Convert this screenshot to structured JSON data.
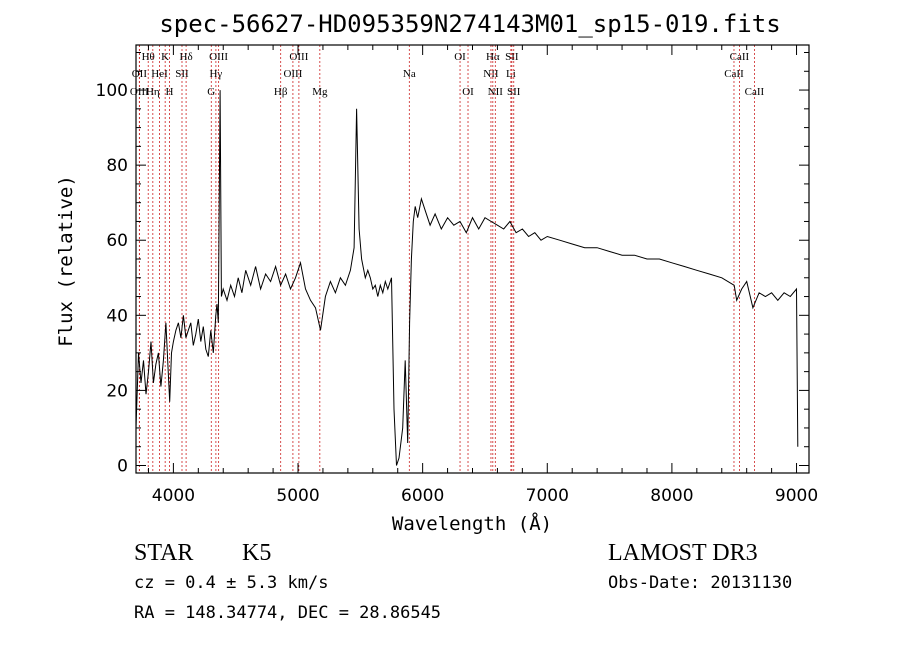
{
  "chart_data": {
    "type": "line",
    "title": "spec-56627-HD095359N274143M01_sp15-019.fits",
    "xlabel": "Wavelength (Å)",
    "ylabel": "Flux (relative)",
    "xlim": [
      3700,
      9100
    ],
    "ylim": [
      -2,
      112
    ],
    "x_ticks": [
      4000,
      5000,
      6000,
      7000,
      8000,
      9000
    ],
    "x_tick_labels": [
      "4000",
      "5000",
      "6000",
      "7000",
      "8000",
      "9000"
    ],
    "y_ticks": [
      0,
      20,
      40,
      60,
      80,
      100
    ],
    "y_tick_labels": [
      "0",
      "20",
      "40",
      "60",
      "80",
      "100"
    ],
    "grid": false,
    "series": [
      {
        "color": "#000000",
        "points": [
          [
            3700,
            10
          ],
          [
            3720,
            30
          ],
          [
            3740,
            22
          ],
          [
            3760,
            28
          ],
          [
            3780,
            19
          ],
          [
            3800,
            25
          ],
          [
            3820,
            33
          ],
          [
            3840,
            22
          ],
          [
            3860,
            27
          ],
          [
            3880,
            30
          ],
          [
            3900,
            21
          ],
          [
            3920,
            28
          ],
          [
            3940,
            38
          ],
          [
            3960,
            24
          ],
          [
            3970,
            17
          ],
          [
            3985,
            30
          ],
          [
            4000,
            33
          ],
          [
            4020,
            36
          ],
          [
            4040,
            38
          ],
          [
            4060,
            34
          ],
          [
            4080,
            40
          ],
          [
            4100,
            34
          ],
          [
            4120,
            36
          ],
          [
            4140,
            38
          ],
          [
            4160,
            32
          ],
          [
            4180,
            35
          ],
          [
            4200,
            39
          ],
          [
            4220,
            33
          ],
          [
            4240,
            37
          ],
          [
            4260,
            31
          ],
          [
            4280,
            29
          ],
          [
            4300,
            36
          ],
          [
            4320,
            30
          ],
          [
            4340,
            40
          ],
          [
            4350,
            43
          ],
          [
            4360,
            38
          ],
          [
            4375,
            100
          ],
          [
            4385,
            45
          ],
          [
            4400,
            47
          ],
          [
            4430,
            44
          ],
          [
            4460,
            48
          ],
          [
            4490,
            45
          ],
          [
            4520,
            50
          ],
          [
            4550,
            46
          ],
          [
            4580,
            52
          ],
          [
            4620,
            48
          ],
          [
            4660,
            53
          ],
          [
            4700,
            47
          ],
          [
            4740,
            51
          ],
          [
            4780,
            49
          ],
          [
            4820,
            53
          ],
          [
            4860,
            48
          ],
          [
            4900,
            51
          ],
          [
            4940,
            47
          ],
          [
            4980,
            50
          ],
          [
            5020,
            54
          ],
          [
            5060,
            47
          ],
          [
            5100,
            44
          ],
          [
            5140,
            42
          ],
          [
            5180,
            36
          ],
          [
            5220,
            45
          ],
          [
            5260,
            49
          ],
          [
            5300,
            46
          ],
          [
            5340,
            50
          ],
          [
            5380,
            48
          ],
          [
            5420,
            52
          ],
          [
            5450,
            58
          ],
          [
            5470,
            95
          ],
          [
            5490,
            63
          ],
          [
            5510,
            55
          ],
          [
            5540,
            50
          ],
          [
            5560,
            52
          ],
          [
            5580,
            50
          ],
          [
            5600,
            47
          ],
          [
            5620,
            48
          ],
          [
            5640,
            45
          ],
          [
            5660,
            48
          ],
          [
            5680,
            46
          ],
          [
            5700,
            49
          ],
          [
            5720,
            47
          ],
          [
            5750,
            50
          ],
          [
            5770,
            15
          ],
          [
            5790,
            0
          ],
          [
            5810,
            2
          ],
          [
            5840,
            10
          ],
          [
            5860,
            28
          ],
          [
            5880,
            6
          ],
          [
            5895,
            38
          ],
          [
            5910,
            55
          ],
          [
            5925,
            65
          ],
          [
            5940,
            69
          ],
          [
            5960,
            66
          ],
          [
            5990,
            71
          ],
          [
            6020,
            68
          ],
          [
            6060,
            64
          ],
          [
            6100,
            67
          ],
          [
            6150,
            63
          ],
          [
            6200,
            66
          ],
          [
            6250,
            64
          ],
          [
            6300,
            65
          ],
          [
            6350,
            62
          ],
          [
            6400,
            66
          ],
          [
            6450,
            63
          ],
          [
            6500,
            66
          ],
          [
            6550,
            65
          ],
          [
            6600,
            64
          ],
          [
            6650,
            63
          ],
          [
            6700,
            65
          ],
          [
            6750,
            62
          ],
          [
            6800,
            63
          ],
          [
            6850,
            61
          ],
          [
            6900,
            62
          ],
          [
            6950,
            60
          ],
          [
            7000,
            61
          ],
          [
            7100,
            60
          ],
          [
            7200,
            59
          ],
          [
            7300,
            58
          ],
          [
            7400,
            58
          ],
          [
            7500,
            57
          ],
          [
            7600,
            56
          ],
          [
            7700,
            56
          ],
          [
            7800,
            55
          ],
          [
            7900,
            55
          ],
          [
            8000,
            54
          ],
          [
            8100,
            53
          ],
          [
            8200,
            52
          ],
          [
            8300,
            51
          ],
          [
            8400,
            50
          ],
          [
            8500,
            48
          ],
          [
            8520,
            44
          ],
          [
            8560,
            47
          ],
          [
            8600,
            49
          ],
          [
            8650,
            42
          ],
          [
            8700,
            46
          ],
          [
            8750,
            45
          ],
          [
            8800,
            46
          ],
          [
            8850,
            44
          ],
          [
            8900,
            46
          ],
          [
            8950,
            45
          ],
          [
            9000,
            47
          ],
          [
            9010,
            5
          ]
        ]
      }
    ],
    "line_marker_color": "#cc2222",
    "lines": [
      {
        "label": "Hθ",
        "wl": 3798,
        "row": 0
      },
      {
        "label": "OII",
        "wl": 3727,
        "row": 1
      },
      {
        "label": "OIII",
        "wl": 3727,
        "row": 2
      },
      {
        "label": "Hη",
        "wl": 3835,
        "row": 2
      },
      {
        "label": "HeI",
        "wl": 3889,
        "row": 1
      },
      {
        "label": "K",
        "wl": 3934,
        "row": 0
      },
      {
        "label": "H",
        "wl": 3969,
        "row": 2
      },
      {
        "label": "SII",
        "wl": 4069,
        "row": 1
      },
      {
        "label": "Hδ",
        "wl": 4102,
        "row": 0
      },
      {
        "label": "G",
        "wl": 4304,
        "row": 2
      },
      {
        "label": "Hγ",
        "wl": 4341,
        "row": 1
      },
      {
        "label": "OIII",
        "wl": 4363,
        "row": 0
      },
      {
        "label": "Hβ",
        "wl": 4861,
        "row": 2
      },
      {
        "label": "OIII",
        "wl": 4959,
        "row": 1
      },
      {
        "label": "OIII",
        "wl": 5007,
        "row": 0
      },
      {
        "label": "Mg",
        "wl": 5175,
        "row": 2
      },
      {
        "label": "Na",
        "wl": 5893,
        "row": 1
      },
      {
        "label": "OI",
        "wl": 6300,
        "row": 0
      },
      {
        "label": "OI",
        "wl": 6364,
        "row": 2
      },
      {
        "label": "NII",
        "wl": 6548,
        "row": 1
      },
      {
        "label": "Hα",
        "wl": 6563,
        "row": 0
      },
      {
        "label": "NII",
        "wl": 6583,
        "row": 2
      },
      {
        "label": "Li",
        "wl": 6708,
        "row": 1
      },
      {
        "label": "SII",
        "wl": 6716,
        "row": 0
      },
      {
        "label": "SII",
        "wl": 6731,
        "row": 2
      },
      {
        "label": "CaII",
        "wl": 8498,
        "row": 1
      },
      {
        "label": "CaII",
        "wl": 8542,
        "row": 0
      },
      {
        "label": "CaII",
        "wl": 8662,
        "row": 2
      }
    ]
  },
  "info": {
    "object_class": "STAR",
    "subclass": "K5",
    "survey": "LAMOST DR3",
    "cz": "cz = 0.4 ± 5.3 km/s",
    "obs_date": "Obs-Date: 20131130",
    "coords": "RA = 148.34774, DEC =  28.86545"
  }
}
